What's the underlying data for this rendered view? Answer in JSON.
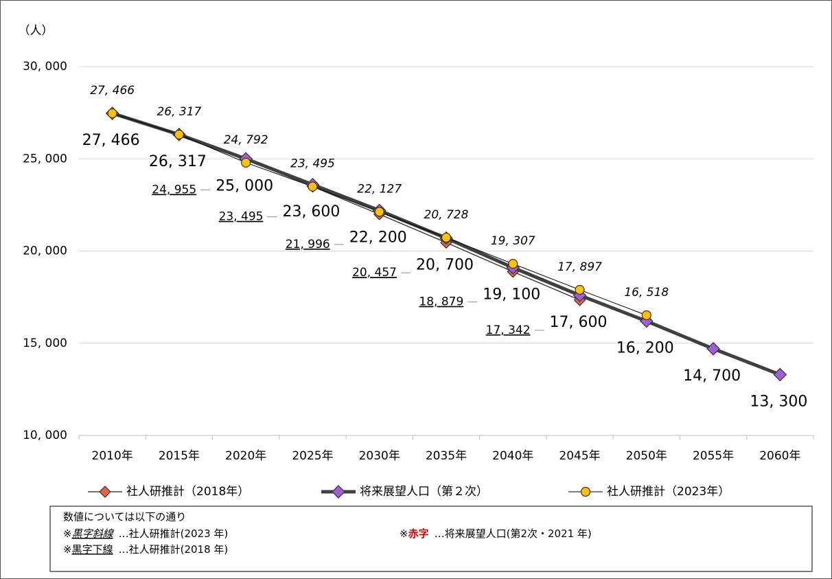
{
  "chart_data": {
    "type": "line",
    "y_label": "（人）",
    "categories": [
      "2010年",
      "2015年",
      "2020年",
      "2025年",
      "2030年",
      "2035年",
      "2040年",
      "2045年",
      "2050年",
      "2055年",
      "2060年"
    ],
    "ylim": [
      10000,
      30000
    ],
    "yticks": [
      {
        "value": 10000,
        "label": "10, 000"
      },
      {
        "value": 15000,
        "label": "15, 000"
      },
      {
        "value": 20000,
        "label": "20, 000"
      },
      {
        "value": 25000,
        "label": "25, 000"
      },
      {
        "value": 30000,
        "label": "30, 000"
      }
    ],
    "grid": true,
    "legend": "bottom",
    "series": [
      {
        "name": "社人研推計（2018年）",
        "color": "#e8604c",
        "values": [
          27466,
          26317,
          24955,
          23495,
          21996,
          20457,
          18879,
          17342,
          null,
          null,
          null
        ],
        "value_labels": [
          null,
          null,
          "24, 955",
          "23, 495",
          "21, 996",
          "20, 457",
          "18, 879",
          "17, 342",
          null,
          null,
          null
        ]
      },
      {
        "name": "将来展望人口（第２次）",
        "color": "#9e5fd6",
        "values": [
          27466,
          26317,
          25000,
          23600,
          22200,
          20700,
          19100,
          17600,
          16200,
          14700,
          13300
        ],
        "value_labels": [
          "27, 466",
          "26, 317",
          "25, 000",
          "23, 600",
          "22, 200",
          "20, 700",
          "19, 100",
          "17, 600",
          "16, 200",
          "14, 700",
          "13, 300"
        ]
      },
      {
        "name": "社人研推計（2023年）",
        "color": "#ffc000",
        "values": [
          27466,
          26317,
          24792,
          23495,
          22127,
          20728,
          19307,
          17897,
          16518,
          null,
          null
        ],
        "value_labels": [
          "27, 466",
          "26, 317",
          "24, 792",
          "23, 495",
          "22, 127",
          "20, 728",
          "19, 307",
          "17, 897",
          "16, 518",
          null,
          null
        ]
      }
    ]
  },
  "note": {
    "title": "数値については以下の通り",
    "items": [
      {
        "mark": "※",
        "key": "黒字斜線",
        "desc": "…社人研推計(2023 年)"
      },
      {
        "mark": "※",
        "key": "赤字",
        "desc": "…将来展望人口(第2次・2021 年)"
      },
      {
        "mark": "※",
        "key": "黒字下線",
        "desc": "…社人研推計(2018 年)"
      }
    ]
  }
}
